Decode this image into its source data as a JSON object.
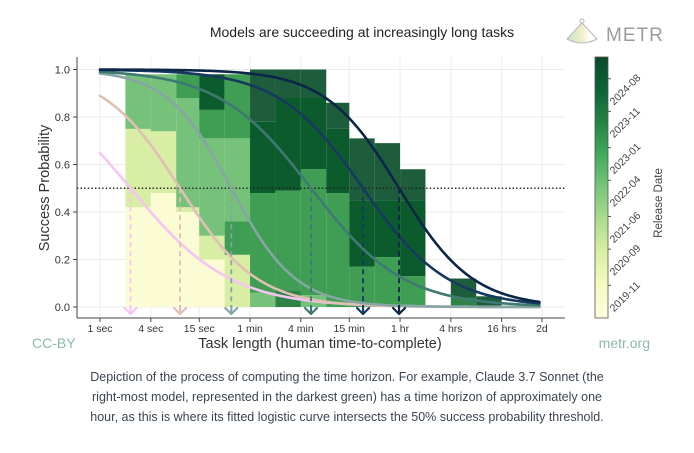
{
  "header": {
    "title": "Models are succeeding at increasingly long tasks",
    "brand": "METR"
  },
  "footer": {
    "license": "CC-BY",
    "site": "metr.org"
  },
  "caption": {
    "lines": [
      "Depiction of the process of computing the time horizon. For example, Claude 3.7 Sonnet (the",
      "right-most model, represented in the darkest green) has a time horizon of approximately one",
      "hour, as this is where its fitted logistic curve intersects the 50% success probability threshold."
    ]
  },
  "chart_data": {
    "type": "line",
    "title": "Models are succeeding at increasingly long tasks",
    "xlabel": "Task length (human time-to-complete)",
    "ylabel": "Success Probability",
    "xscale": "log",
    "xlim_seconds": [
      0.53,
      330000
    ],
    "ylim": [
      -0.046,
      1.053
    ],
    "grid": true,
    "xticks": [
      {
        "value": 1,
        "label": "1 sec"
      },
      {
        "value": 4,
        "label": "4 sec"
      },
      {
        "value": 15,
        "label": "15 sec"
      },
      {
        "value": 60,
        "label": "1 min"
      },
      {
        "value": 240,
        "label": "4 min"
      },
      {
        "value": 900,
        "label": "15 min"
      },
      {
        "value": 3600,
        "label": "1 hr"
      },
      {
        "value": 14400,
        "label": "4 hrs"
      },
      {
        "value": 57600,
        "label": "16 hrs"
      },
      {
        "value": 172800,
        "label": "2d"
      }
    ],
    "yticks": [
      {
        "value": 0.0,
        "label": "0.0"
      },
      {
        "value": 0.2,
        "label": "0.2"
      },
      {
        "value": 0.4,
        "label": "0.4"
      },
      {
        "value": 0.6,
        "label": "0.6"
      },
      {
        "value": 0.8,
        "label": "0.8"
      },
      {
        "value": 1.0,
        "label": "1.0"
      }
    ],
    "threshold": 0.5,
    "curve_range_seconds": [
      1,
      172800
    ],
    "series": [
      {
        "color": "#f6c5f1",
        "horizon_seconds": 2.3,
        "slope_per_doubling": 0.51
      },
      {
        "color": "#e0bfb5",
        "horizon_seconds": 8.9,
        "slope_per_doubling": 0.66
      },
      {
        "color": "#85a6a2",
        "horizon_seconds": 36,
        "slope_per_doubling": 0.79
      },
      {
        "color": "#3f7a72",
        "horizon_seconds": 317,
        "slope_per_doubling": 0.55
      },
      {
        "color": "#17395f",
        "horizon_seconds": 1310,
        "slope_per_doubling": 0.6
      },
      {
        "color": "#0b2646",
        "horizon_seconds": 3500,
        "slope_per_doubling": 0.69
      }
    ],
    "histogram": [
      {
        "range_seconds": [
          2,
          4
        ],
        "layers": [
          {
            "from": 0,
            "to": 0.42,
            "color": "#fbfbd4"
          },
          {
            "from": 0.42,
            "to": 0.75,
            "color": "#d8eea4"
          },
          {
            "from": 0.75,
            "to": 0.98,
            "color": "#76c27a"
          }
        ]
      },
      {
        "range_seconds": [
          4,
          8
        ],
        "layers": [
          {
            "from": 0,
            "to": 0.48,
            "color": "#fbfbd4"
          },
          {
            "from": 0.48,
            "to": 0.74,
            "color": "#d8eea4"
          },
          {
            "from": 0.74,
            "to": 0.98,
            "color": "#76c27a"
          }
        ]
      },
      {
        "range_seconds": [
          8,
          15
        ],
        "layers": [
          {
            "from": 0,
            "to": 0.4,
            "color": "#fbfbd4"
          },
          {
            "from": 0.4,
            "to": 0.42,
            "color": "#d8eea4"
          },
          {
            "from": 0.42,
            "to": 0.88,
            "color": "#76c27a"
          },
          {
            "from": 0.88,
            "to": 0.98,
            "color": "#3f9e53"
          }
        ]
      },
      {
        "range_seconds": [
          15,
          30
        ],
        "layers": [
          {
            "from": 0,
            "to": 0.2,
            "color": "#fbfbd4"
          },
          {
            "from": 0.2,
            "to": 0.3,
            "color": "#d8eea4"
          },
          {
            "from": 0.3,
            "to": 0.71,
            "color": "#76c27a"
          },
          {
            "from": 0.71,
            "to": 0.83,
            "color": "#3f9e53"
          },
          {
            "from": 0.83,
            "to": 0.98,
            "color": "#0c5b2d"
          }
        ]
      },
      {
        "range_seconds": [
          30,
          60
        ],
        "layers": [
          {
            "from": 0,
            "to": 0.22,
            "color": "#d8eea4"
          },
          {
            "from": 0.22,
            "to": 0.36,
            "color": "#3f9e53"
          },
          {
            "from": 0.36,
            "to": 0.71,
            "color": "#76c27a"
          },
          {
            "from": 0.71,
            "to": 0.98,
            "color": "#3f9e53"
          }
        ]
      },
      {
        "range_seconds": [
          60,
          120
        ],
        "layers": [
          {
            "from": 0,
            "to": 0.06,
            "color": "#76c27a"
          },
          {
            "from": 0.06,
            "to": 0.48,
            "color": "#3f9e53"
          },
          {
            "from": 0.48,
            "to": 0.78,
            "color": "#0c5b2d"
          },
          {
            "from": 0.78,
            "to": 1.0,
            "color": "#1e5d3b"
          }
        ]
      },
      {
        "range_seconds": [
          120,
          240
        ],
        "layers": [
          {
            "from": 0,
            "to": 0.07,
            "color": "#2b8346"
          },
          {
            "from": 0.07,
            "to": 0.49,
            "color": "#3f9e53"
          },
          {
            "from": 0.49,
            "to": 0.88,
            "color": "#0c5b2d"
          },
          {
            "from": 0.88,
            "to": 1.0,
            "color": "#1e5d3b"
          }
        ]
      },
      {
        "range_seconds": [
          240,
          480
        ],
        "layers": [
          {
            "from": 0,
            "to": 0.05,
            "color": "#76c27a"
          },
          {
            "from": 0.05,
            "to": 0.58,
            "color": "#3f9e53"
          },
          {
            "from": 0.58,
            "to": 0.88,
            "color": "#0c5b2d"
          },
          {
            "from": 0.88,
            "to": 1.0,
            "color": "#1e5d3b"
          }
        ]
      },
      {
        "range_seconds": [
          480,
          900
        ],
        "layers": [
          {
            "from": 0,
            "to": 0.48,
            "color": "#3f9e53"
          },
          {
            "from": 0.48,
            "to": 0.75,
            "color": "#0c5b2d"
          },
          {
            "from": 0.75,
            "to": 0.86,
            "color": "#1e5d3b"
          }
        ]
      },
      {
        "range_seconds": [
          900,
          1800
        ],
        "layers": [
          {
            "from": 0,
            "to": 0.17,
            "color": "#3f9e53"
          },
          {
            "from": 0.17,
            "to": 0.45,
            "color": "#0c5b2d"
          },
          {
            "from": 0.45,
            "to": 0.71,
            "color": "#1e5d3b"
          }
        ]
      },
      {
        "range_seconds": [
          1800,
          3600
        ],
        "layers": [
          {
            "from": 0,
            "to": 0.21,
            "color": "#3f9e53"
          },
          {
            "from": 0.21,
            "to": 0.45,
            "color": "#0c5b2d"
          },
          {
            "from": 0.45,
            "to": 0.69,
            "color": "#1e5d3b"
          }
        ]
      },
      {
        "range_seconds": [
          3600,
          7200
        ],
        "layers": [
          {
            "from": 0,
            "to": 0.13,
            "color": "#3f9e53"
          },
          {
            "from": 0.13,
            "to": 0.45,
            "color": "#0c5b2d"
          },
          {
            "from": 0.45,
            "to": 0.58,
            "color": "#1e5d3b"
          }
        ]
      },
      {
        "range_seconds": [
          14400,
          28800
        ],
        "layers": [
          {
            "from": 0,
            "to": 0.04,
            "color": "#2b8346"
          },
          {
            "from": 0.04,
            "to": 0.12,
            "color": "#1e5d3b"
          }
        ]
      },
      {
        "range_seconds": [
          28800,
          57600
        ],
        "layers": [
          {
            "from": 0,
            "to": 0.045,
            "color": "#1e5d3b"
          }
        ]
      }
    ],
    "colorbar": {
      "label": "Release Date",
      "range": [
        "2019-02",
        "2025-02"
      ],
      "ticks": [
        "2019-11",
        "2020-09",
        "2021-06",
        "2022-04",
        "2023-01",
        "2023-11",
        "2024-08"
      ],
      "colors_low_to_high": [
        "#ffffe0",
        "#f5fbc0",
        "#d9f0a3",
        "#addd8e",
        "#78c679",
        "#41ab5d",
        "#238443",
        "#0b6435",
        "#0a4a2c"
      ]
    }
  }
}
